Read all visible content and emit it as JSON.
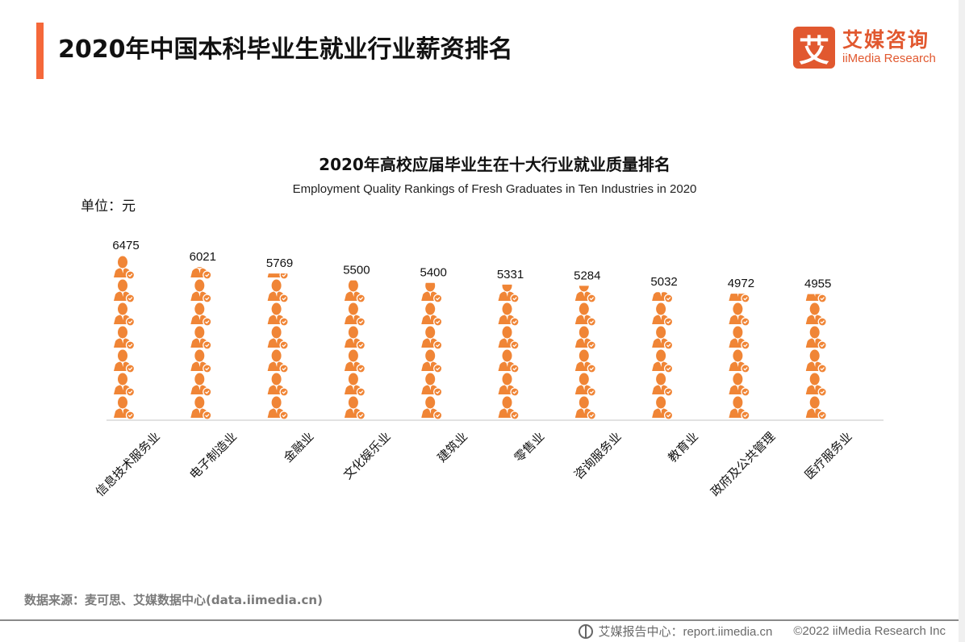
{
  "header": {
    "title": "2020年中国本科毕业生就业行业薪资排名",
    "logo_mark": "艾",
    "logo_cn": "艾媒咨询",
    "logo_en": "iiMedia Research"
  },
  "colors": {
    "accent": "#f5683a",
    "icon": "#f08536",
    "logo": "#e1582f"
  },
  "chart_data": {
    "type": "bar",
    "style": "pictograph (person icons)",
    "title": "2020年高校应届毕业生在十大行业就业质量排名",
    "subtitle": "Employment Quality Rankings of Fresh Graduates in Ten Industries in 2020",
    "unit": "单位：元",
    "xlabel": "",
    "ylabel": "",
    "ylim": [
      0,
      6475
    ],
    "grid": false,
    "categories": [
      "信息技术服务业",
      "电子制造业",
      "金融业",
      "文化娱乐业",
      "建筑业",
      "零售业",
      "咨询服务业",
      "教育业",
      "政府及公共管理",
      "医疗服务业"
    ],
    "values": [
      6475,
      6021,
      5769,
      5500,
      5400,
      5331,
      5284,
      5032,
      4972,
      4955
    ],
    "value_labels": [
      "6475",
      "6021",
      "5769",
      "5500",
      "5400",
      "5331",
      "5284",
      "5032",
      "4972",
      "4955"
    ]
  },
  "footer": {
    "source": "数据来源：麦可思、艾媒数据中心(data.iimedia.cn)",
    "report_center": "艾媒报告中心：report.iimedia.cn",
    "copyright": "©2022  iiMedia Research  Inc"
  }
}
